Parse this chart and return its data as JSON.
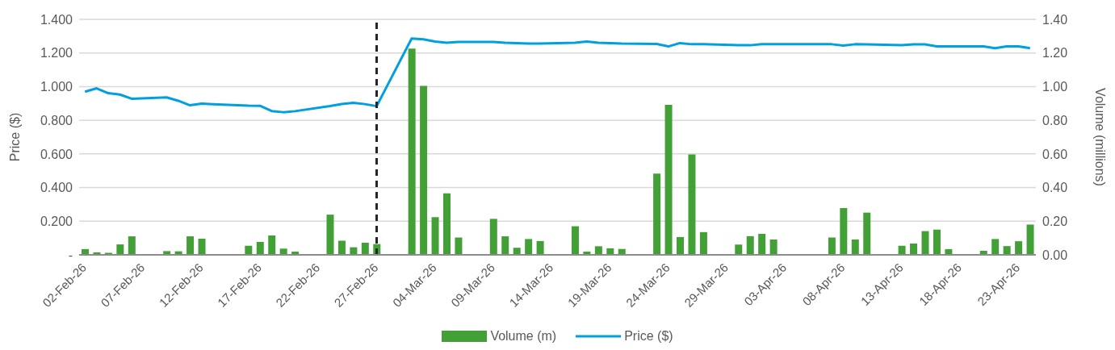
{
  "chart_data": {
    "type": "bar",
    "categories": [
      "02-Feb-26",
      null,
      null,
      null,
      null,
      "07-Feb-26",
      null,
      null,
      null,
      null,
      "12-Feb-26",
      null,
      null,
      null,
      null,
      "17-Feb-26",
      null,
      null,
      null,
      null,
      "22-Feb-26",
      null,
      null,
      null,
      null,
      "27-Feb-26",
      null,
      null,
      null,
      null,
      "04-Mar-26",
      null,
      null,
      null,
      null,
      "09-Mar-26",
      null,
      null,
      null,
      null,
      "14-Mar-26",
      null,
      null,
      null,
      null,
      "19-Mar-26",
      null,
      null,
      null,
      null,
      "24-Mar-26",
      null,
      null,
      null,
      null,
      "29-Mar-26",
      null,
      null,
      null,
      null,
      "03-Apr-26",
      null,
      null,
      null,
      null,
      "08-Apr-26",
      null,
      null,
      null,
      null,
      "13-Apr-26",
      null,
      null,
      null,
      null,
      "18-Apr-26",
      null,
      null,
      null,
      null,
      "23-Apr-26",
      null
    ],
    "series": [
      {
        "name": "Volume (m)",
        "axis": "y2",
        "color": "#43a036",
        "values": [
          0.034,
          0.015,
          0.012,
          0.062,
          0.11,
          null,
          null,
          0.022,
          0.021,
          0.11,
          0.096,
          0.004,
          null,
          null,
          0.054,
          0.077,
          0.115,
          0.037,
          0.019,
          null,
          null,
          0.239,
          0.084,
          0.045,
          0.072,
          0.064,
          null,
          null,
          1.226,
          1.005,
          0.224,
          0.365,
          0.103,
          null,
          null,
          0.214,
          0.11,
          0.042,
          0.094,
          0.082,
          null,
          null,
          0.17,
          0.019,
          0.051,
          0.039,
          0.035,
          null,
          null,
          0.483,
          0.892,
          0.106,
          0.597,
          0.135,
          null,
          null,
          0.061,
          0.111,
          0.125,
          0.091,
          null,
          null,
          null,
          null,
          0.103,
          0.278,
          0.091,
          0.251,
          null,
          null,
          0.054,
          0.067,
          0.141,
          0.15,
          0.034,
          null,
          null,
          0.024,
          0.094,
          0.052,
          0.081,
          0.18
        ]
      },
      {
        "name": "Price ($)",
        "type": "line",
        "color": "#00a0e0",
        "values": [
          0.97,
          0.99,
          0.961,
          0.953,
          0.928,
          null,
          null,
          0.936,
          0.916,
          0.889,
          0.899,
          0.895,
          null,
          null,
          0.887,
          0.886,
          0.855,
          0.848,
          0.854,
          null,
          null,
          0.885,
          0.897,
          0.904,
          0.896,
          0.884,
          null,
          null,
          1.286,
          1.281,
          1.268,
          1.261,
          1.266,
          null,
          null,
          1.266,
          1.261,
          1.259,
          1.256,
          1.256,
          null,
          null,
          1.261,
          1.268,
          1.261,
          1.259,
          1.256,
          null,
          null,
          1.254,
          1.239,
          1.259,
          1.252,
          1.252,
          null,
          null,
          1.247,
          1.246,
          1.252,
          1.252,
          null,
          null,
          null,
          null,
          1.252,
          1.244,
          1.252,
          1.251,
          null,
          null,
          1.246,
          1.251,
          1.251,
          1.239,
          1.239,
          null,
          null,
          1.239,
          1.229,
          1.239,
          1.239,
          1.229
        ]
      }
    ],
    "ylabel": "Price ($)",
    "y2label": "Volume (millions)",
    "ylim": [
      0,
      1.4
    ],
    "yticks": [
      {
        "value": 0,
        "label": "-"
      },
      {
        "value": 0.2,
        "label": "0.200"
      },
      {
        "value": 0.4,
        "label": "0.400"
      },
      {
        "value": 0.6,
        "label": "0.600"
      },
      {
        "value": 0.8,
        "label": "0.800"
      },
      {
        "value": 1.0,
        "label": "1.000"
      },
      {
        "value": 1.2,
        "label": "1.200"
      },
      {
        "value": 1.4,
        "label": "1.400"
      }
    ],
    "y2lim": [
      0,
      1.4
    ],
    "y2ticks": [
      {
        "value": 0,
        "label": "0.00"
      },
      {
        "value": 0.2,
        "label": "0.20"
      },
      {
        "value": 0.4,
        "label": "0.40"
      },
      {
        "value": 0.6,
        "label": "0.60"
      },
      {
        "value": 0.8,
        "label": "0.80"
      },
      {
        "value": 1.0,
        "label": "1.00"
      },
      {
        "value": 1.2,
        "label": "1.20"
      },
      {
        "value": 1.4,
        "label": "1.40"
      }
    ],
    "ref_lines": [
      {
        "axis": "x",
        "value": "27-Feb-26",
        "color": "#262626",
        "line_style": "dashed"
      }
    ],
    "grid": "y",
    "legend": "bottom",
    "marker": "none",
    "line_style": "solid"
  }
}
